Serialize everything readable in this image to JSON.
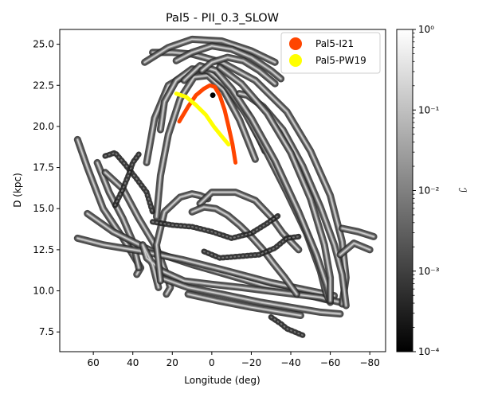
{
  "chart_data": {
    "type": "scatter",
    "title": "Pal5 - PII_0.3_SLOW",
    "xlabel": "Longitude (deg)",
    "ylabel": "D (kpc)",
    "xlim": [
      77,
      -88
    ],
    "ylim": [
      6.3,
      25.9
    ],
    "x_inverted": true,
    "xticks": [
      60,
      40,
      20,
      0,
      -20,
      -40,
      -60,
      -80
    ],
    "xtick_labels": [
      "60",
      "40",
      "20",
      "0",
      "−20",
      "−40",
      "−60",
      "−80"
    ],
    "yticks": [
      7.5,
      10.0,
      12.5,
      15.0,
      17.5,
      20.0,
      22.5,
      25.0
    ],
    "ytick_labels": [
      "7.5",
      "10.0",
      "12.5",
      "15.0",
      "17.5",
      "20.0",
      "22.5",
      "25.0"
    ],
    "colorbar": {
      "label": "ℐ",
      "scale": "log",
      "range": [
        0.0001,
        1
      ],
      "tick_labels": [
        "10⁻⁴",
        "10⁻³",
        "10⁻²",
        "10⁻¹",
        "10⁰"
      ],
      "colormap": "gray"
    },
    "legend_position": "top-right",
    "legend": [
      {
        "name": "Pal5-I21",
        "color": "#ff4500"
      },
      {
        "name": "Pal5-PW19",
        "color": "#ffff00"
      }
    ],
    "series": [
      {
        "name": "Pal5-I21",
        "color": "#ff4500",
        "x": [
          16.5,
          12,
          8,
          4,
          1,
          -1.5,
          -4,
          -6.5,
          -8.5,
          -10.5,
          -12
        ],
        "y": [
          20.3,
          21.2,
          21.9,
          22.3,
          22.5,
          22.4,
          21.9,
          21.0,
          20.0,
          18.9,
          17.8
        ]
      },
      {
        "name": "Pal5-PW19",
        "color": "#ffff00",
        "x": [
          18,
          13,
          8,
          3,
          -1,
          -5,
          -8.5
        ],
        "y": [
          22.0,
          21.8,
          21.3,
          20.7,
          20.0,
          19.4,
          18.9
        ]
      },
      {
        "name": "",
        "color": "#000000",
        "x": [
          -0.5
        ],
        "y": [
          21.9
        ]
      }
    ],
    "density_streams": [
      {
        "x": [
          68,
          63,
          55,
          45,
          36,
          38
        ],
        "y": [
          19.2,
          17.5,
          15.0,
          13.2,
          11.4,
          11.0
        ]
      },
      {
        "x": [
          58,
          52,
          45,
          40,
          37
        ],
        "y": [
          17.8,
          16.0,
          14.4,
          13.0,
          11.4
        ]
      },
      {
        "x": [
          54,
          45,
          37,
          28,
          23,
          21,
          23
        ],
        "y": [
          17.2,
          16.2,
          14.4,
          12.6,
          11.0,
          10.2,
          9.8
        ]
      },
      {
        "x": [
          63,
          50,
          30,
          10,
          -10,
          -30,
          -50,
          -60
        ],
        "y": [
          14.7,
          13.6,
          12.4,
          11.6,
          10.9,
          10.2,
          9.7,
          9.4
        ]
      },
      {
        "x": [
          68,
          55,
          35,
          15,
          -5,
          -30,
          -50,
          -62
        ],
        "y": [
          13.2,
          12.8,
          12.4,
          11.9,
          11.3,
          10.5,
          10.0,
          9.7
        ]
      },
      {
        "x": [
          27,
          30,
          35,
          33,
          25,
          14,
          0,
          -15,
          -35,
          -55,
          -65
        ],
        "y": [
          10.2,
          11.6,
          12.8,
          12.0,
          11.2,
          10.6,
          10.4,
          10.2,
          9.9,
          9.6,
          9.3
        ]
      },
      {
        "x": [
          26,
          12,
          -5,
          -25,
          -45,
          -55,
          -65
        ],
        "y": [
          10.8,
          10.2,
          9.8,
          9.3,
          8.9,
          8.7,
          8.6
        ]
      },
      {
        "x": [
          12,
          -3,
          -20,
          -35,
          -45
        ],
        "y": [
          9.8,
          9.4,
          9.0,
          8.7,
          8.5
        ]
      },
      {
        "x": [
          26,
          28,
          24,
          16,
          10,
          6,
          2
        ],
        "y": [
          10.6,
          12.8,
          14.8,
          15.7,
          15.9,
          15.8,
          15.6
        ]
      },
      {
        "x": [
          6,
          0,
          -12,
          -22,
          -30,
          -36,
          -44
        ],
        "y": [
          15.3,
          16.0,
          16.0,
          15.5,
          14.5,
          13.5,
          12.5
        ]
      },
      {
        "x": [
          10,
          4,
          -2,
          -8,
          -14,
          -20,
          -26,
          -31,
          -37,
          -43
        ],
        "y": [
          14.8,
          15.1,
          15.0,
          14.6,
          14.0,
          13.3,
          12.5,
          11.7,
          10.8,
          9.8
        ]
      },
      {
        "x": [
          33,
          29,
          22,
          12,
          2,
          -7,
          -18,
          -27
        ],
        "y": [
          17.8,
          20.5,
          22.5,
          23.2,
          23.3,
          22.5,
          20.8,
          18.5
        ]
      },
      {
        "x": [
          28,
          26,
          22,
          16,
          9,
          2,
          -6,
          -14,
          -22
        ],
        "y": [
          14.5,
          17.0,
          19.5,
          21.7,
          23.0,
          23.1,
          22.2,
          20.4,
          18.0
        ]
      },
      {
        "x": [
          26,
          24,
          18,
          10,
          2,
          -7,
          -17,
          -27,
          -38,
          -48,
          -55,
          -58,
          -60
        ],
        "y": [
          19.8,
          21.5,
          22.8,
          23.5,
          23.4,
          22.5,
          20.8,
          18.6,
          16.0,
          13.5,
          11.2,
          9.8,
          9.3
        ]
      },
      {
        "x": [
          14,
          6,
          -2,
          -10,
          -20,
          -32,
          -44,
          -53,
          -58,
          -60
        ],
        "y": [
          22.8,
          23.7,
          23.4,
          22.3,
          20.5,
          17.9,
          14.8,
          12.2,
          10.4,
          9.5
        ]
      },
      {
        "x": [
          30,
          20,
          10,
          -5,
          -22,
          -38,
          -50,
          -60,
          -66,
          -68,
          -66
        ],
        "y": [
          24.5,
          24.5,
          24.4,
          23.9,
          22.8,
          20.9,
          18.5,
          15.8,
          13.0,
          10.8,
          9.2
        ]
      },
      {
        "x": [
          34,
          22,
          10,
          -5,
          -20,
          -32
        ],
        "y": [
          23.9,
          24.8,
          25.3,
          25.2,
          24.6,
          23.9
        ]
      },
      {
        "x": [
          18,
          10,
          0,
          -10,
          -20,
          -30,
          -35
        ],
        "y": [
          24.0,
          24.5,
          24.9,
          24.7,
          24.2,
          23.4,
          22.9
        ]
      },
      {
        "x": [
          5,
          0,
          -8,
          -16,
          -24,
          -32
        ],
        "y": [
          23.4,
          23.9,
          24.2,
          24.0,
          23.4,
          22.6
        ]
      },
      {
        "x": [
          -14,
          -18,
          -26,
          -36,
          -46,
          -55,
          -62,
          -66,
          -67,
          -68
        ],
        "y": [
          22.0,
          21.9,
          21.2,
          19.8,
          17.6,
          15.1,
          12.8,
          11.0,
          10.1,
          9.1
        ]
      },
      {
        "x": [
          -4,
          -15,
          -28,
          -40,
          -50,
          -57,
          -60,
          -60
        ],
        "y": [
          23.6,
          22.6,
          20.8,
          18.4,
          15.6,
          12.8,
          10.8,
          9.4
        ]
      },
      {
        "x": [
          -65,
          -72,
          -80
        ],
        "y": [
          12.2,
          12.9,
          12.5
        ]
      },
      {
        "x": [
          -66,
          -74,
          -82
        ],
        "y": [
          13.8,
          13.6,
          13.3
        ]
      }
    ],
    "density_clumps": [
      {
        "x": [
          54,
          49,
          44,
          38,
          33,
          30
        ],
        "y": [
          18.2,
          18.4,
          17.7,
          16.8,
          16.0,
          14.8
        ]
      },
      {
        "x": [
          49,
          45,
          42,
          40,
          37
        ],
        "y": [
          15.2,
          16.2,
          17.1,
          17.8,
          18.3
        ]
      },
      {
        "x": [
          30,
          20,
          10,
          0,
          -10,
          -20,
          -28,
          -34
        ],
        "y": [
          14.2,
          14.0,
          13.9,
          13.6,
          13.2,
          13.5,
          14.1,
          14.6
        ]
      },
      {
        "x": [
          4,
          -4,
          -14,
          -24,
          -32,
          -38,
          -44
        ],
        "y": [
          12.4,
          12.0,
          12.1,
          12.2,
          12.6,
          13.2,
          13.3
        ]
      },
      {
        "x": [
          -30,
          -35,
          -38,
          -42,
          -46
        ],
        "y": [
          8.4,
          8.0,
          7.7,
          7.5,
          7.3
        ]
      }
    ]
  }
}
